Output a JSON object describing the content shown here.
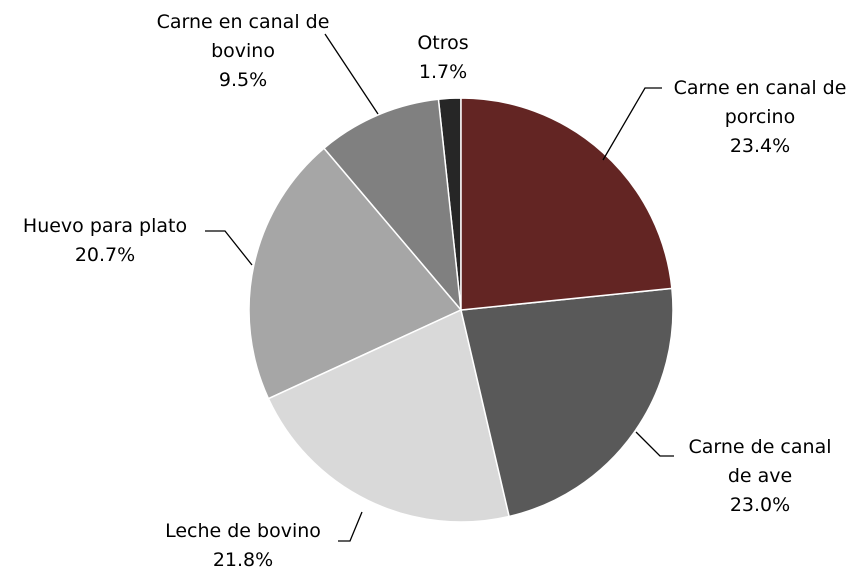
{
  "chart_data": {
    "type": "pie",
    "categories": [
      "Carne en canal de porcino",
      "Carne de canal de ave",
      "Leche de bovino",
      "Huevo para plato",
      "Carne en canal de bovino",
      "Otros"
    ],
    "values": [
      23.4,
      23.0,
      21.8,
      20.7,
      9.5,
      1.7
    ],
    "value_labels": [
      "23.4%",
      "23.0%",
      "21.8%",
      "20.7%",
      "9.5%",
      "1.7%"
    ],
    "colors": [
      "#632523",
      "#595959",
      "#d9d9d9",
      "#a6a6a6",
      "#808080",
      "#262626"
    ]
  }
}
